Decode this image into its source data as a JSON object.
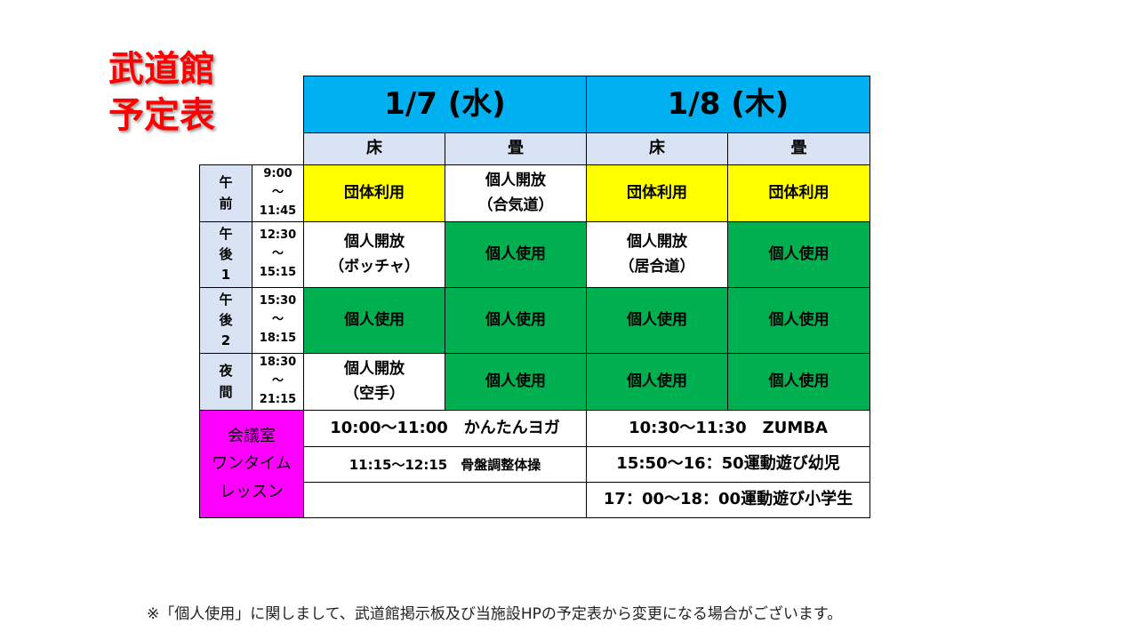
{
  "title": [
    "武道館",
    "予定表"
  ],
  "days": [
    {
      "label": "1/7 (水)",
      "areas": [
        "床",
        "畳"
      ]
    },
    {
      "label": "1/8 (木)",
      "areas": [
        "床",
        "畳"
      ]
    }
  ],
  "rows": [
    {
      "period": [
        "午",
        "前"
      ],
      "time": [
        "9:00",
        "～",
        "11:45"
      ],
      "cells": [
        [
          "団体利用"
        ],
        [
          "個人開放",
          "（合気道）"
        ],
        [
          "団体利用"
        ],
        [
          "団体利用"
        ]
      ],
      "colors": [
        "y",
        "w",
        "y",
        "y"
      ]
    },
    {
      "period": [
        "午",
        "後",
        "1"
      ],
      "time": [
        "12:30",
        "～",
        "15:15"
      ],
      "cells": [
        [
          "個人開放",
          "（ボッチャ）"
        ],
        [
          "個人使用"
        ],
        [
          "個人開放",
          "（居合道）"
        ],
        [
          "個人使用"
        ]
      ],
      "colors": [
        "w",
        "g",
        "w",
        "g"
      ]
    },
    {
      "period": [
        "午",
        "後",
        "2"
      ],
      "time": [
        "15:30",
        "～",
        "18:15"
      ],
      "cells": [
        [
          "個人使用"
        ],
        [
          "個人使用"
        ],
        [
          "個人使用"
        ],
        [
          "個人使用"
        ]
      ],
      "colors": [
        "g",
        "g",
        "g",
        "g"
      ]
    },
    {
      "period": [
        "夜",
        "間"
      ],
      "time": [
        "18:30",
        "～",
        "21:15"
      ],
      "cells": [
        [
          "個人開放",
          "（空手）"
        ],
        [
          "個人使用"
        ],
        [
          "個人使用"
        ],
        [
          "個人使用"
        ]
      ],
      "colors": [
        "w",
        "g",
        "g",
        "g"
      ]
    }
  ],
  "lessons": {
    "label": [
      "会議室",
      "ワンタイム",
      "レッスン"
    ],
    "day1": [
      "10:00～11:00　かんたんヨガ",
      "11:15～12:15　骨盤調整体操",
      ""
    ],
    "day2": [
      "10:30～11:30　ZUMBA",
      "15:50～16：50運動遊び幼児",
      "17：00～18：00運動遊び小学生"
    ]
  },
  "colors": {
    "header": "#00b0f0",
    "group": "#ffff00",
    "personal": "#00b050",
    "lesson": "#ff00ff",
    "title": "#ff0000"
  },
  "note": "※「個人使用」に関しまして、武道館掲示板及び当施設HPの予定表から変更になる場合がございます。"
}
